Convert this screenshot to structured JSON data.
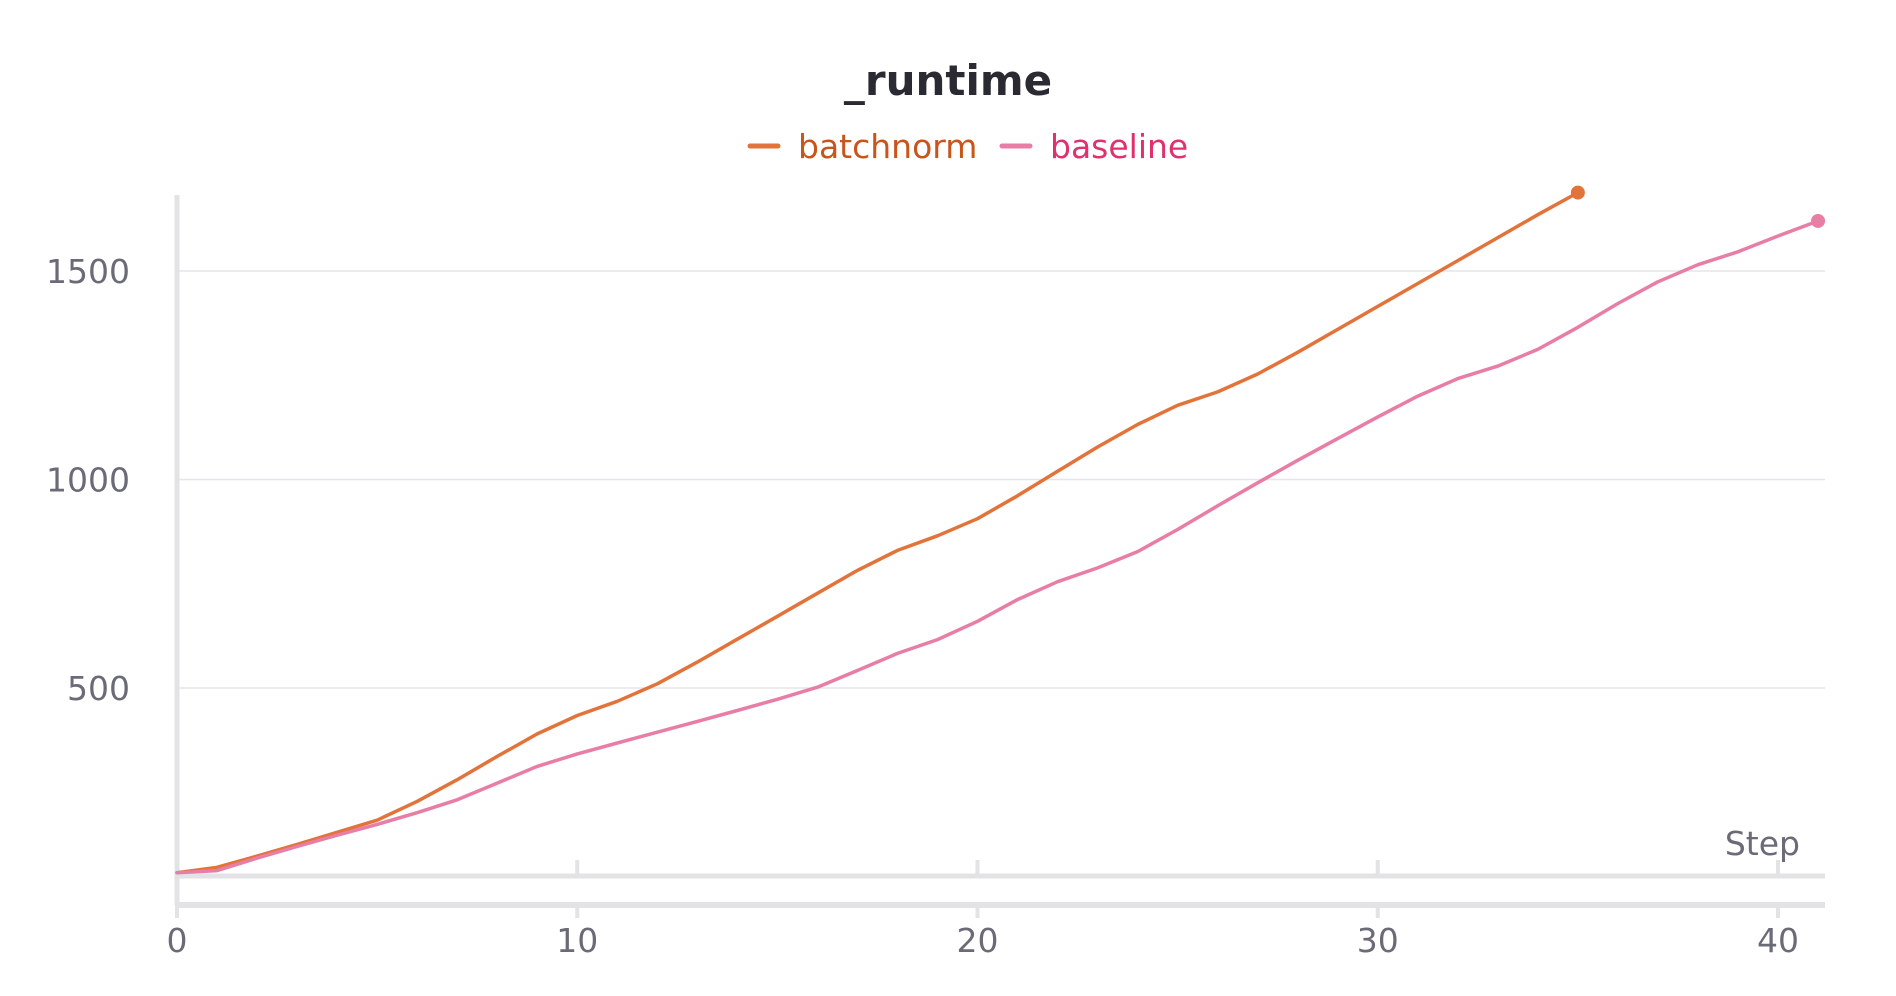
{
  "chart_data": {
    "type": "line",
    "title": "_runtime",
    "xlabel": "Step",
    "ylabel": "",
    "xlim": [
      0,
      41
    ],
    "ylim": [
      50,
      1700
    ],
    "x_ticks": [
      "0",
      "10",
      "20",
      "30",
      "40"
    ],
    "y_ticks": [
      "500",
      "1000",
      "1500"
    ],
    "grid": "horizontal",
    "legend_position": "top-center",
    "series": [
      {
        "name": "batchnorm",
        "color": "#e2733a",
        "text_color": "#c9541c",
        "x": [
          0,
          1,
          2,
          3,
          4,
          5,
          6,
          7,
          8,
          9,
          10,
          11,
          12,
          13,
          14,
          15,
          16,
          17,
          18,
          19,
          20,
          21,
          22,
          23,
          24,
          25,
          26,
          27,
          28,
          29,
          30,
          31,
          32,
          33,
          34,
          35
        ],
        "y": [
          57,
          70,
          97,
          125,
          154,
          183,
          228,
          280,
          336,
          390,
          434,
          468,
          510,
          562,
          617,
          672,
          727,
          782,
          830,
          865,
          906,
          961,
          1020,
          1078,
          1132,
          1178,
          1210,
          1253,
          1305,
          1360,
          1415,
          1470,
          1525,
          1580,
          1635,
          1688
        ]
      },
      {
        "name": "baseline",
        "color": "#e87da5",
        "text_color": "#e0306e",
        "x": [
          0,
          1,
          2,
          3,
          4,
          5,
          6,
          7,
          8,
          9,
          10,
          11,
          12,
          13,
          14,
          15,
          16,
          17,
          18,
          19,
          20,
          21,
          22,
          23,
          24,
          25,
          26,
          27,
          28,
          29,
          30,
          31,
          32,
          33,
          34,
          35,
          36,
          37,
          38,
          39,
          40,
          41
        ],
        "y": [
          57,
          62,
          92,
          120,
          147,
          173,
          201,
          232,
          272,
          312,
          342,
          368,
          394,
          420,
          446,
          473,
          502,
          542,
          583,
          616,
          660,
          712,
          755,
          788,
          827,
          880,
          937,
          992,
          1046,
          1098,
          1150,
          1200,
          1242,
          1272,
          1312,
          1365,
          1422,
          1474,
          1515,
          1546,
          1584,
          1620
        ]
      }
    ]
  }
}
